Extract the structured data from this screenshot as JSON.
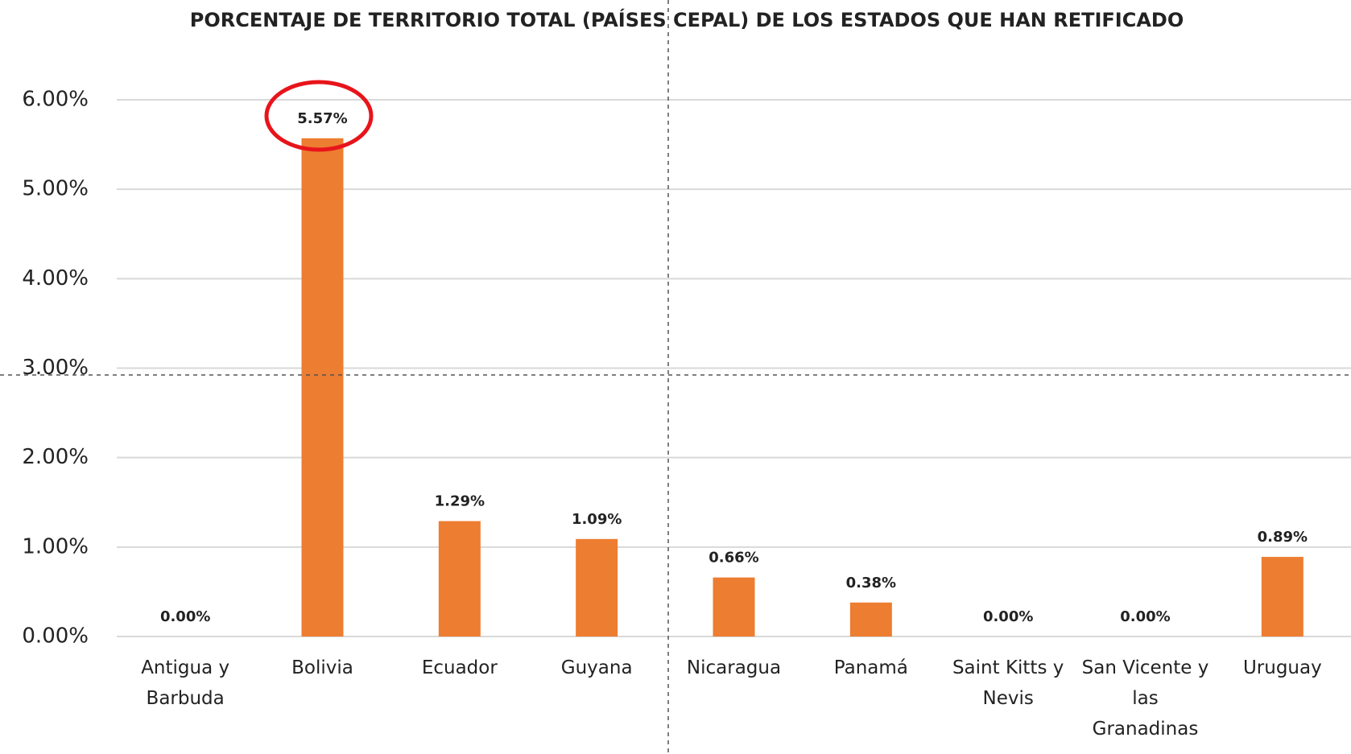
{
  "chart_data": {
    "type": "bar",
    "title": "PORCENTAJE DE TERRITORIO TOTAL  (PAÍSES CEPAL) DE LOS ESTADOS QUE HAN RETIFICADO",
    "categories": [
      "Antigua y Barbuda",
      "Bolivia",
      "Ecuador",
      "Guyana",
      "Nicaragua",
      "Panamá",
      "Saint Kitts y Nevis",
      "San Vicente y las Granadinas",
      "Uruguay"
    ],
    "values": [
      0,
      5.57,
      1.29,
      1.09,
      0.66,
      0.38,
      0,
      0,
      0.89
    ],
    "value_labels": [
      "0.00%",
      "5.57%",
      "1.29%",
      "1.09%",
      "0.66%",
      "0.38%",
      "0.00%",
      "0.00%",
      "0.89%"
    ],
    "color": "#ed7d31",
    "ylim": [
      0,
      6
    ],
    "yticks": [
      {
        "value": 0,
        "label": "0.00%"
      },
      {
        "value": 1,
        "label": "1.00%"
      },
      {
        "value": 2,
        "label": "2.00%"
      },
      {
        "value": 3,
        "label": "3.00%"
      },
      {
        "value": 4,
        "label": "4.00%"
      },
      {
        "value": 5,
        "label": "5.00%"
      },
      {
        "value": 6,
        "label": "6.00%"
      }
    ],
    "grid": true
  }
}
